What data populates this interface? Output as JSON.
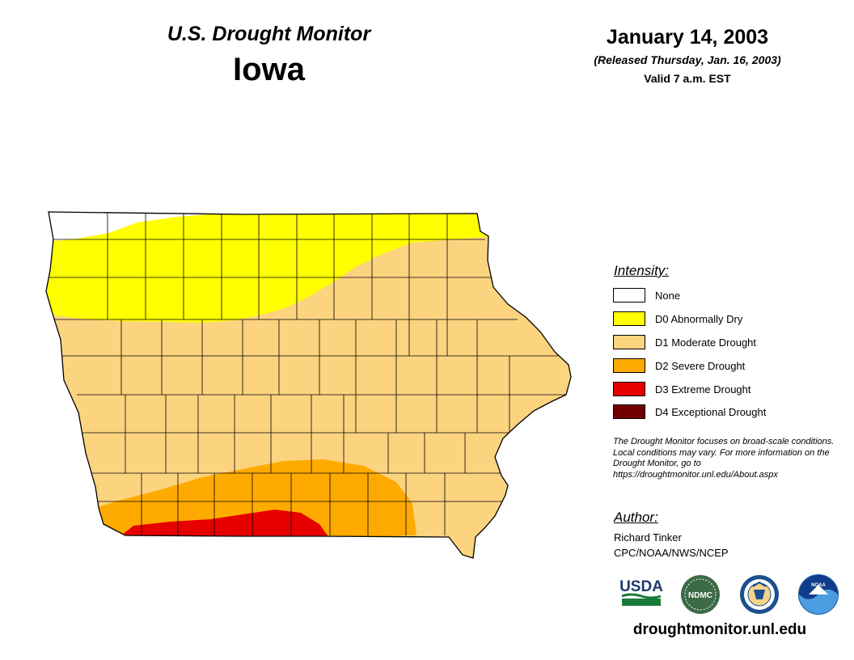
{
  "header": {
    "title": "U.S. Drought Monitor",
    "state": "Iowa",
    "date": "January 14, 2003",
    "released": "(Released Thursday, Jan. 16, 2003)",
    "valid": "Valid 7 a.m. EST"
  },
  "legend": {
    "heading": "Intensity:",
    "items": [
      {
        "label": "None",
        "color": "#ffffff"
      },
      {
        "label": "D0 Abnormally Dry",
        "color": "#ffff00"
      },
      {
        "label": "D1 Moderate Drought",
        "color": "#fcd37f"
      },
      {
        "label": "D2 Severe Drought",
        "color": "#ffaa00"
      },
      {
        "label": "D3 Extreme Drought",
        "color": "#e60000"
      },
      {
        "label": "D4 Exceptional Drought",
        "color": "#730000"
      }
    ]
  },
  "note": "The Drought Monitor focuses on broad-scale conditions. Local conditions may vary. For more information on the Drought Monitor, go to https://droughtmonitor.unl.edu/About.aspx",
  "author": {
    "heading": "Author:",
    "name": "Richard Tinker",
    "org": "CPC/NOAA/NWS/NCEP"
  },
  "logos": [
    {
      "name": "USDA",
      "text": "USDA"
    },
    {
      "name": "NDMC",
      "text": "NDMC"
    },
    {
      "name": "Department of Commerce",
      "text": ""
    },
    {
      "name": "NOAA",
      "text": "NOAA"
    }
  ],
  "website": "droughtmonitor.unl.edu"
}
